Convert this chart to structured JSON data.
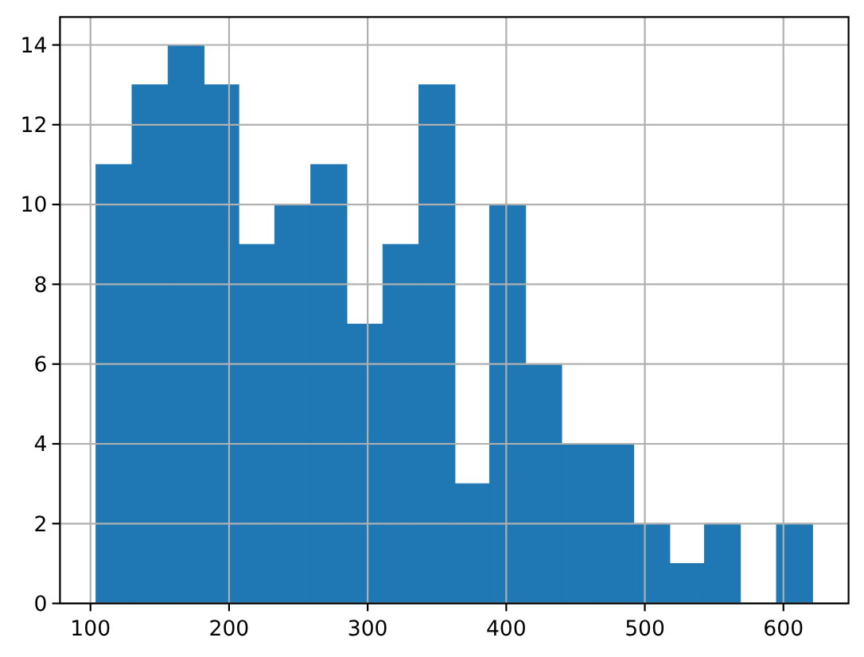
{
  "chart_data": {
    "type": "histogram",
    "bins": [
      104,
      130,
      156,
      182,
      207,
      233,
      259,
      285,
      311,
      337,
      363,
      388,
      414,
      440,
      466,
      492,
      518,
      543,
      569,
      595,
      621
    ],
    "values": [
      11,
      13,
      14,
      13,
      9,
      10,
      11,
      7,
      9,
      13,
      3,
      10,
      6,
      4,
      4,
      2,
      1,
      2,
      0,
      2
    ],
    "color": "#1f77b4",
    "xlim": [
      78,
      647
    ],
    "ylim": [
      0,
      14.7
    ],
    "xticks": [
      100,
      200,
      300,
      400,
      500,
      600
    ],
    "yticks": [
      0,
      2,
      4,
      6,
      8,
      10,
      12,
      14
    ],
    "grid": true
  }
}
